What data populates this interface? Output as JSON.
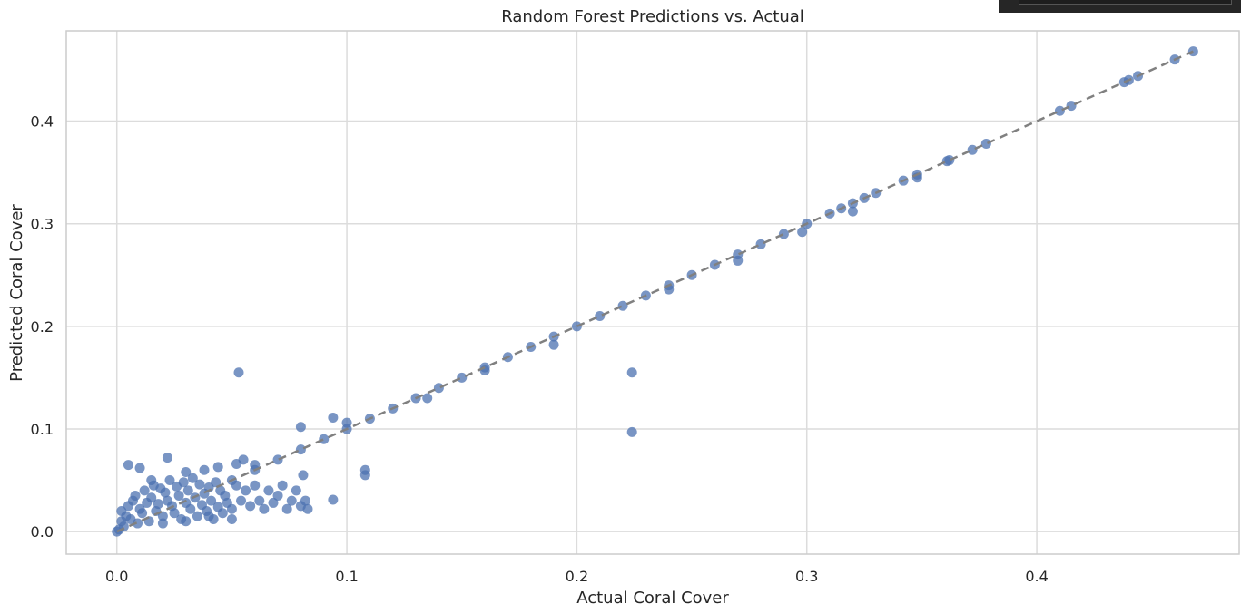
{
  "chart_data": {
    "type": "scatter",
    "title": "Random Forest Predictions vs. Actual",
    "xlabel": "Actual Coral Cover",
    "ylabel": "Predicted Coral Cover",
    "xlim": [
      -0.022,
      0.488
    ],
    "ylim": [
      -0.022,
      0.488
    ],
    "xticks": [
      0.0,
      0.1,
      0.2,
      0.3,
      0.4
    ],
    "yticks": [
      0.0,
      0.1,
      0.2,
      0.3,
      0.4
    ],
    "xtick_labels": [
      "0.0",
      "0.1",
      "0.2",
      "0.3",
      "0.4"
    ],
    "ytick_labels": [
      "0.0",
      "0.1",
      "0.2",
      "0.3",
      "0.4"
    ],
    "grid": true,
    "point_color": "#4c72b0",
    "reference_line": {
      "style": "dashed",
      "color": "#808080",
      "from": [
        0.0,
        0.0
      ],
      "to": [
        0.468,
        0.468
      ]
    },
    "points": [
      [
        0.0,
        0.0
      ],
      [
        0.001,
        0.002
      ],
      [
        0.002,
        0.01
      ],
      [
        0.002,
        0.02
      ],
      [
        0.003,
        0.005
      ],
      [
        0.004,
        0.015
      ],
      [
        0.005,
        0.025
      ],
      [
        0.006,
        0.012
      ],
      [
        0.007,
        0.03
      ],
      [
        0.008,
        0.035
      ],
      [
        0.009,
        0.008
      ],
      [
        0.01,
        0.022
      ],
      [
        0.011,
        0.018
      ],
      [
        0.012,
        0.04
      ],
      [
        0.013,
        0.028
      ],
      [
        0.014,
        0.01
      ],
      [
        0.015,
        0.033
      ],
      [
        0.016,
        0.045
      ],
      [
        0.017,
        0.02
      ],
      [
        0.018,
        0.027
      ],
      [
        0.019,
        0.042
      ],
      [
        0.02,
        0.015
      ],
      [
        0.021,
        0.038
      ],
      [
        0.022,
        0.03
      ],
      [
        0.023,
        0.05
      ],
      [
        0.024,
        0.025
      ],
      [
        0.025,
        0.018
      ],
      [
        0.026,
        0.044
      ],
      [
        0.027,
        0.035
      ],
      [
        0.028,
        0.012
      ],
      [
        0.029,
        0.048
      ],
      [
        0.03,
        0.028
      ],
      [
        0.031,
        0.04
      ],
      [
        0.032,
        0.022
      ],
      [
        0.033,
        0.052
      ],
      [
        0.034,
        0.033
      ],
      [
        0.035,
        0.015
      ],
      [
        0.036,
        0.046
      ],
      [
        0.037,
        0.026
      ],
      [
        0.038,
        0.037
      ],
      [
        0.039,
        0.02
      ],
      [
        0.04,
        0.043
      ],
      [
        0.041,
        0.03
      ],
      [
        0.042,
        0.012
      ],
      [
        0.043,
        0.048
      ],
      [
        0.044,
        0.024
      ],
      [
        0.045,
        0.04
      ],
      [
        0.046,
        0.018
      ],
      [
        0.047,
        0.035
      ],
      [
        0.048,
        0.028
      ],
      [
        0.05,
        0.022
      ],
      [
        0.052,
        0.045
      ],
      [
        0.054,
        0.03
      ],
      [
        0.056,
        0.04
      ],
      [
        0.058,
        0.025
      ],
      [
        0.06,
        0.045
      ],
      [
        0.062,
        0.03
      ],
      [
        0.064,
        0.022
      ],
      [
        0.066,
        0.04
      ],
      [
        0.068,
        0.028
      ],
      [
        0.07,
        0.035
      ],
      [
        0.072,
        0.045
      ],
      [
        0.074,
        0.022
      ],
      [
        0.076,
        0.03
      ],
      [
        0.078,
        0.04
      ],
      [
        0.08,
        0.025
      ],
      [
        0.081,
        0.055
      ],
      [
        0.082,
        0.03
      ],
      [
        0.083,
        0.022
      ],
      [
        0.005,
        0.065
      ],
      [
        0.01,
        0.062
      ],
      [
        0.015,
        0.05
      ],
      [
        0.022,
        0.072
      ],
      [
        0.03,
        0.058
      ],
      [
        0.038,
        0.06
      ],
      [
        0.044,
        0.063
      ],
      [
        0.052,
        0.066
      ],
      [
        0.055,
        0.07
      ],
      [
        0.06,
        0.065
      ],
      [
        0.05,
        0.012
      ],
      [
        0.04,
        0.015
      ],
      [
        0.02,
        0.008
      ],
      [
        0.03,
        0.01
      ],
      [
        0.053,
        0.155
      ],
      [
        0.224,
        0.155
      ],
      [
        0.224,
        0.097
      ],
      [
        0.08,
        0.102
      ],
      [
        0.094,
        0.031
      ],
      [
        0.094,
        0.111
      ],
      [
        0.108,
        0.055
      ],
      [
        0.108,
        0.06
      ],
      [
        0.1,
        0.106
      ],
      [
        0.05,
        0.05
      ],
      [
        0.06,
        0.06
      ],
      [
        0.07,
        0.07
      ],
      [
        0.08,
        0.08
      ],
      [
        0.09,
        0.09
      ],
      [
        0.1,
        0.1
      ],
      [
        0.11,
        0.11
      ],
      [
        0.12,
        0.12
      ],
      [
        0.13,
        0.13
      ],
      [
        0.14,
        0.14
      ],
      [
        0.15,
        0.15
      ],
      [
        0.16,
        0.16
      ],
      [
        0.17,
        0.17
      ],
      [
        0.18,
        0.18
      ],
      [
        0.19,
        0.19
      ],
      [
        0.2,
        0.2
      ],
      [
        0.21,
        0.21
      ],
      [
        0.22,
        0.22
      ],
      [
        0.23,
        0.23
      ],
      [
        0.24,
        0.24
      ],
      [
        0.25,
        0.25
      ],
      [
        0.26,
        0.26
      ],
      [
        0.27,
        0.27
      ],
      [
        0.28,
        0.28
      ],
      [
        0.29,
        0.29
      ],
      [
        0.3,
        0.3
      ],
      [
        0.31,
        0.31
      ],
      [
        0.315,
        0.315
      ],
      [
        0.32,
        0.32
      ],
      [
        0.325,
        0.325
      ],
      [
        0.33,
        0.33
      ],
      [
        0.342,
        0.342
      ],
      [
        0.348,
        0.348
      ],
      [
        0.361,
        0.361
      ],
      [
        0.362,
        0.362
      ],
      [
        0.372,
        0.372
      ],
      [
        0.378,
        0.378
      ],
      [
        0.41,
        0.41
      ],
      [
        0.415,
        0.415
      ],
      [
        0.438,
        0.438
      ],
      [
        0.44,
        0.44
      ],
      [
        0.444,
        0.444
      ],
      [
        0.46,
        0.46
      ],
      [
        0.468,
        0.468
      ],
      [
        0.19,
        0.182
      ],
      [
        0.24,
        0.236
      ],
      [
        0.27,
        0.264
      ],
      [
        0.298,
        0.292
      ],
      [
        0.32,
        0.312
      ],
      [
        0.348,
        0.345
      ],
      [
        0.16,
        0.157
      ],
      [
        0.135,
        0.13
      ]
    ]
  }
}
